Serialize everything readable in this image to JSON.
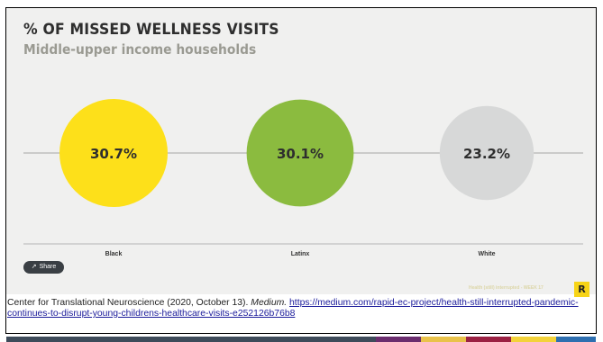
{
  "chart_data": {
    "type": "bubble",
    "title": "% OF MISSED WELLNESS VISITS",
    "subtitle": "Middle-upper income households",
    "categories": [
      "Black",
      "Latinx",
      "White"
    ],
    "values": [
      30.7,
      30.1,
      23.2
    ],
    "value_labels": [
      "30.7%",
      "30.1%",
      "23.2%"
    ],
    "colors": [
      "#fde01a",
      "#8bbb3f",
      "#d7d8d8"
    ],
    "label_color": "#2e2e2e"
  },
  "share": {
    "label": "Share",
    "icon": "share-icon"
  },
  "watermark": "Health (still) interrupted - WEEK 17",
  "logo": "R",
  "caption": {
    "text": "Center for Translational Neuroscience (2020, October 13). ",
    "source": "Medium.",
    "link": "https://medium.com/rapid-ec-project/health-still-interrupted-pandemic-continues-to-disrupt-young-childrens-healthcare-visits-e252126b76b8"
  },
  "bottom_colors": [
    "#3e4b5a",
    "#3e4b5a",
    "#3e4b5a",
    "#3e4b5a",
    "#6b2d6e",
    "#e9c24a",
    "#9b2143",
    "#f3d23a",
    "#2e6fb0"
  ]
}
